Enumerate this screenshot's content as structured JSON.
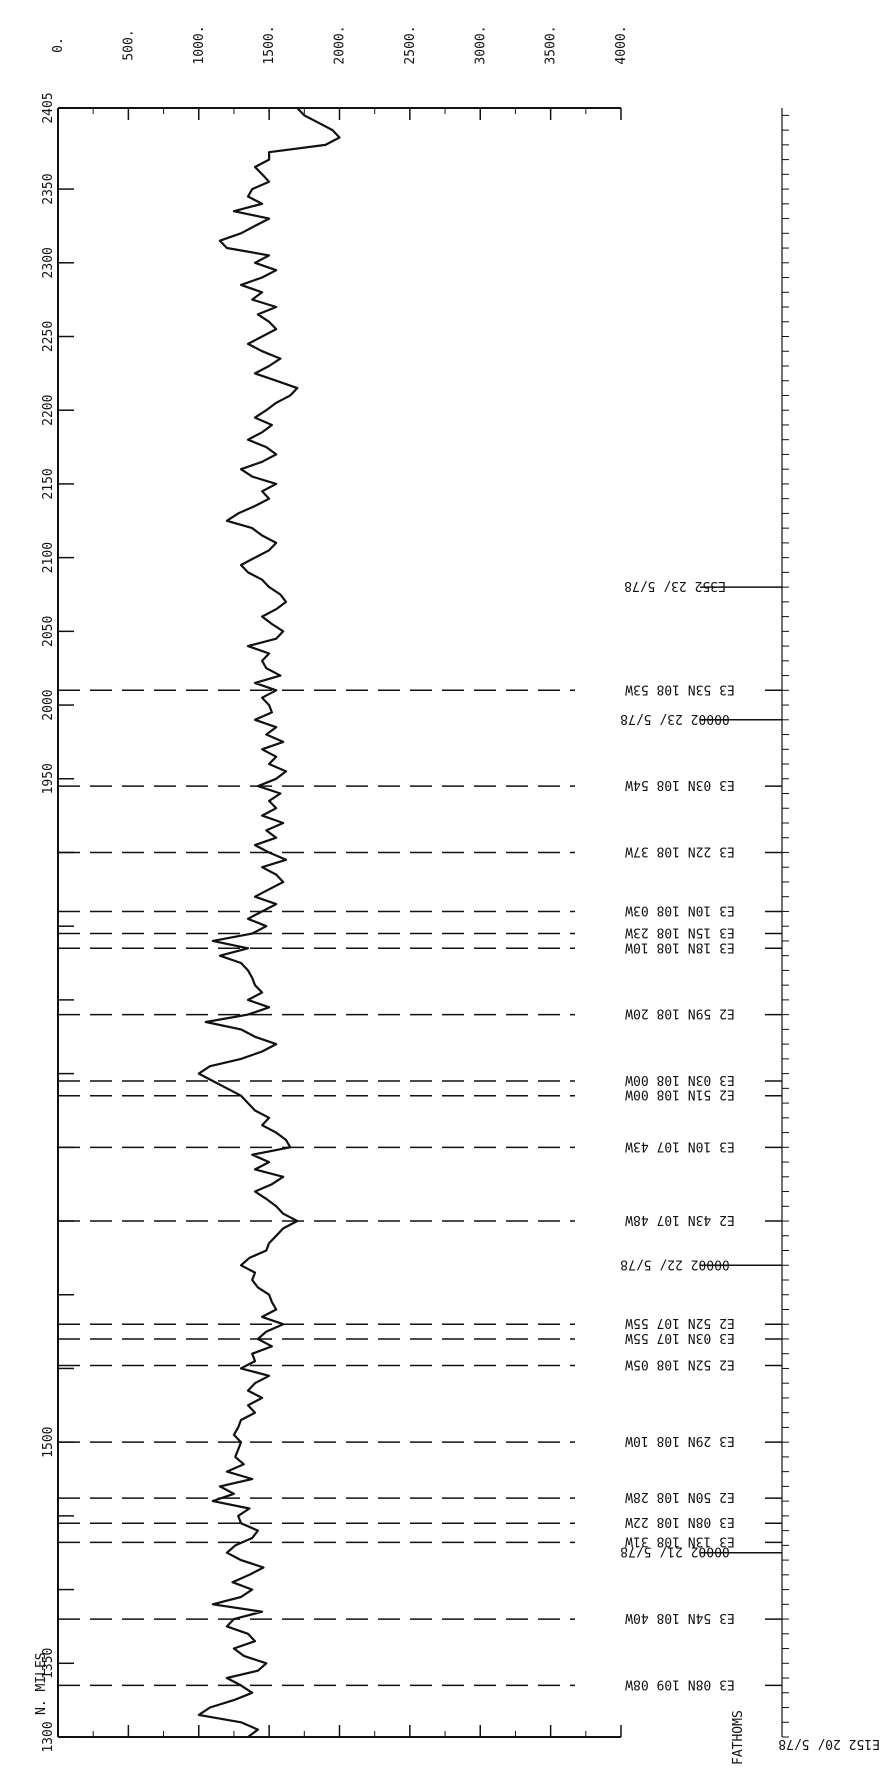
{
  "chart_data": {
    "type": "line",
    "title": "",
    "xlabel": "N. MILES",
    "ylabel": "FATHOMS",
    "orientation": "rotated-90",
    "xlim": [
      1300,
      2405
    ],
    "ylim": [
      0,
      4000
    ],
    "x_ticks": [
      "1300",
      "1350",
      "1400",
      "1450",
      "1500",
      "1550",
      "1600",
      "1650",
      "1700",
      "1750",
      "1800",
      "1850",
      "1900",
      "1950",
      "2000",
      "2050",
      "2100",
      "2150",
      "2200",
      "2250",
      "2300",
      "2350",
      "2405"
    ],
    "x_tick_labels": [
      "1300",
      "1350",
      "1500",
      "1950",
      "2000",
      "2050",
      "2100",
      "2150",
      "2200",
      "2250",
      "2300",
      "2350",
      "2405"
    ],
    "y_ticks": [
      "0.",
      "500.",
      "1000.",
      "1500.",
      "2000.",
      "2500.",
      "3000.",
      "3500.",
      "4000."
    ],
    "grid": false,
    "series": [
      {
        "color": "#111111",
        "points": [
          [
            1300,
            1350
          ],
          [
            1305,
            1420
          ],
          [
            1310,
            1300
          ],
          [
            1315,
            1000
          ],
          [
            1320,
            1080
          ],
          [
            1325,
            1250
          ],
          [
            1330,
            1380
          ],
          [
            1335,
            1300
          ],
          [
            1340,
            1200
          ],
          [
            1345,
            1420
          ],
          [
            1350,
            1480
          ],
          [
            1355,
            1320
          ],
          [
            1360,
            1250
          ],
          [
            1365,
            1400
          ],
          [
            1370,
            1350
          ],
          [
            1375,
            1200
          ],
          [
            1380,
            1250
          ],
          [
            1385,
            1450
          ],
          [
            1390,
            1100
          ],
          [
            1395,
            1300
          ],
          [
            1400,
            1380
          ],
          [
            1405,
            1240
          ],
          [
            1410,
            1360
          ],
          [
            1415,
            1460
          ],
          [
            1420,
            1300
          ],
          [
            1425,
            1200
          ],
          [
            1430,
            1260
          ],
          [
            1435,
            1380
          ],
          [
            1440,
            1420
          ],
          [
            1445,
            1300
          ],
          [
            1450,
            1280
          ],
          [
            1455,
            1360
          ],
          [
            1460,
            1100
          ],
          [
            1465,
            1250
          ],
          [
            1470,
            1150
          ],
          [
            1475,
            1380
          ],
          [
            1480,
            1200
          ],
          [
            1485,
            1320
          ],
          [
            1490,
            1260
          ],
          [
            1495,
            1280
          ],
          [
            1500,
            1300
          ],
          [
            1505,
            1250
          ],
          [
            1510,
            1280
          ],
          [
            1515,
            1300
          ],
          [
            1520,
            1400
          ],
          [
            1525,
            1350
          ],
          [
            1530,
            1450
          ],
          [
            1535,
            1350
          ],
          [
            1540,
            1400
          ],
          [
            1545,
            1500
          ],
          [
            1550,
            1300
          ],
          [
            1555,
            1400
          ],
          [
            1560,
            1380
          ],
          [
            1565,
            1520
          ],
          [
            1570,
            1420
          ],
          [
            1575,
            1480
          ],
          [
            1580,
            1600
          ],
          [
            1585,
            1450
          ],
          [
            1590,
            1550
          ],
          [
            1595,
            1520
          ],
          [
            1600,
            1500
          ],
          [
            1605,
            1420
          ],
          [
            1610,
            1380
          ],
          [
            1615,
            1400
          ],
          [
            1620,
            1300
          ],
          [
            1625,
            1360
          ],
          [
            1630,
            1480
          ],
          [
            1635,
            1500
          ],
          [
            1640,
            1550
          ],
          [
            1645,
            1600
          ],
          [
            1650,
            1700
          ],
          [
            1655,
            1600
          ],
          [
            1660,
            1550
          ],
          [
            1665,
            1480
          ],
          [
            1670,
            1400
          ],
          [
            1675,
            1520
          ],
          [
            1680,
            1600
          ],
          [
            1685,
            1400
          ],
          [
            1690,
            1500
          ],
          [
            1695,
            1380
          ],
          [
            1700,
            1650
          ],
          [
            1705,
            1620
          ],
          [
            1710,
            1550
          ],
          [
            1715,
            1450
          ],
          [
            1720,
            1500
          ],
          [
            1725,
            1400
          ],
          [
            1730,
            1350
          ],
          [
            1735,
            1300
          ],
          [
            1740,
            1200
          ],
          [
            1745,
            1100
          ],
          [
            1750,
            1000
          ],
          [
            1755,
            1080
          ],
          [
            1760,
            1300
          ],
          [
            1765,
            1450
          ],
          [
            1770,
            1550
          ],
          [
            1775,
            1400
          ],
          [
            1780,
            1300
          ],
          [
            1785,
            1050
          ],
          [
            1790,
            1350
          ],
          [
            1795,
            1500
          ],
          [
            1800,
            1350
          ],
          [
            1805,
            1450
          ],
          [
            1810,
            1400
          ],
          [
            1815,
            1380
          ],
          [
            1820,
            1350
          ],
          [
            1825,
            1300
          ],
          [
            1830,
            1150
          ],
          [
            1835,
            1350
          ],
          [
            1840,
            1100
          ],
          [
            1845,
            1380
          ],
          [
            1850,
            1480
          ],
          [
            1855,
            1350
          ],
          [
            1860,
            1450
          ],
          [
            1865,
            1550
          ],
          [
            1870,
            1400
          ],
          [
            1875,
            1500
          ],
          [
            1880,
            1600
          ],
          [
            1885,
            1550
          ],
          [
            1890,
            1450
          ],
          [
            1895,
            1620
          ],
          [
            1900,
            1500
          ],
          [
            1905,
            1400
          ],
          [
            1910,
            1550
          ],
          [
            1915,
            1480
          ],
          [
            1920,
            1600
          ],
          [
            1925,
            1450
          ],
          [
            1930,
            1550
          ],
          [
            1935,
            1500
          ],
          [
            1940,
            1580
          ],
          [
            1945,
            1420
          ],
          [
            1950,
            1550
          ],
          [
            1955,
            1620
          ],
          [
            1960,
            1500
          ],
          [
            1965,
            1550
          ],
          [
            1970,
            1450
          ],
          [
            1975,
            1600
          ],
          [
            1980,
            1480
          ],
          [
            1985,
            1550
          ],
          [
            1990,
            1400
          ],
          [
            1995,
            1520
          ],
          [
            2000,
            1500
          ],
          [
            2005,
            1450
          ],
          [
            2010,
            1550
          ],
          [
            2015,
            1400
          ],
          [
            2020,
            1580
          ],
          [
            2025,
            1480
          ],
          [
            2030,
            1450
          ],
          [
            2035,
            1500
          ],
          [
            2040,
            1350
          ],
          [
            2045,
            1550
          ],
          [
            2050,
            1600
          ],
          [
            2055,
            1520
          ],
          [
            2060,
            1450
          ],
          [
            2065,
            1550
          ],
          [
            2070,
            1620
          ],
          [
            2075,
            1580
          ],
          [
            2080,
            1500
          ],
          [
            2085,
            1450
          ],
          [
            2090,
            1350
          ],
          [
            2095,
            1300
          ],
          [
            2100,
            1400
          ],
          [
            2105,
            1500
          ],
          [
            2110,
            1550
          ],
          [
            2115,
            1450
          ],
          [
            2120,
            1380
          ],
          [
            2125,
            1200
          ],
          [
            2130,
            1280
          ],
          [
            2135,
            1400
          ],
          [
            2140,
            1500
          ],
          [
            2145,
            1450
          ],
          [
            2150,
            1550
          ],
          [
            2155,
            1380
          ],
          [
            2160,
            1300
          ],
          [
            2165,
            1450
          ],
          [
            2170,
            1550
          ],
          [
            2175,
            1480
          ],
          [
            2180,
            1350
          ],
          [
            2185,
            1450
          ],
          [
            2190,
            1520
          ],
          [
            2195,
            1400
          ],
          [
            2200,
            1480
          ],
          [
            2205,
            1550
          ],
          [
            2210,
            1650
          ],
          [
            2215,
            1700
          ],
          [
            2220,
            1550
          ],
          [
            2225,
            1400
          ],
          [
            2230,
            1500
          ],
          [
            2235,
            1580
          ],
          [
            2240,
            1450
          ],
          [
            2245,
            1350
          ],
          [
            2250,
            1450
          ],
          [
            2255,
            1550
          ],
          [
            2260,
            1500
          ],
          [
            2265,
            1420
          ],
          [
            2270,
            1550
          ],
          [
            2275,
            1380
          ],
          [
            2280,
            1450
          ],
          [
            2285,
            1300
          ],
          [
            2290,
            1450
          ],
          [
            2295,
            1550
          ],
          [
            2300,
            1400
          ],
          [
            2305,
            1500
          ],
          [
            2310,
            1200
          ],
          [
            2315,
            1150
          ],
          [
            2320,
            1300
          ],
          [
            2325,
            1400
          ],
          [
            2330,
            1500
          ],
          [
            2335,
            1250
          ],
          [
            2340,
            1450
          ],
          [
            2345,
            1350
          ],
          [
            2350,
            1380
          ],
          [
            2355,
            1500
          ],
          [
            2360,
            1450
          ],
          [
            2365,
            1400
          ],
          [
            2370,
            1500
          ],
          [
            2375,
            1500
          ],
          [
            2380,
            1900
          ],
          [
            2385,
            2000
          ],
          [
            2390,
            1950
          ],
          [
            2395,
            1850
          ],
          [
            2400,
            1750
          ],
          [
            2405,
            1700
          ]
        ]
      }
    ],
    "station_lines": [
      {
        "nm": 1335,
        "label": "E3 08N 109 08W"
      },
      {
        "nm": 1380,
        "label": "E3 54N 108 40W"
      },
      {
        "nm": 1425,
        "label": "00002 21/ 5/78",
        "solid": true
      },
      {
        "nm": 1432,
        "label": "E3 13N 108 31W"
      },
      {
        "nm": 1445,
        "label": "E3 08N 108 22W"
      },
      {
        "nm": 1462,
        "label": "E2 50N 108 28W"
      },
      {
        "nm": 1500,
        "label": "E3 29N 108 10W"
      },
      {
        "nm": 1552,
        "label": "E2 52N 108 05W"
      },
      {
        "nm": 1570,
        "label": "E3 03N 107 55W"
      },
      {
        "nm": 1580,
        "label": "E2 52N 107 55W"
      },
      {
        "nm": 1620,
        "label": "00002 22/ 5/78",
        "solid": true
      },
      {
        "nm": 1650,
        "label": "E2 43N 107 48W"
      },
      {
        "nm": 1700,
        "label": "E3 10N 107 43W"
      },
      {
        "nm": 1735,
        "label": "E2 51N 108 00W"
      },
      {
        "nm": 1745,
        "label": "E3 03N 108 00W"
      },
      {
        "nm": 1790,
        "label": "E2 59N 108 20W"
      },
      {
        "nm": 1835,
        "label": "E3 18N 108 10W"
      },
      {
        "nm": 1845,
        "label": "E3 15N 108 23W"
      },
      {
        "nm": 1860,
        "label": "E3 10N 108 03W"
      },
      {
        "nm": 1900,
        "label": "E3 22N 108 37W"
      },
      {
        "nm": 1945,
        "label": "E3 03N 108 54W"
      },
      {
        "nm": 1990,
        "label": "00002 23/ 5/78",
        "solid": true
      },
      {
        "nm": 2010,
        "label": "E3 53N 108 53W"
      },
      {
        "nm": 2080,
        "label": "E352 23/ 5/78",
        "solid": true
      }
    ],
    "start_label": "E152 20/ 5/78"
  }
}
